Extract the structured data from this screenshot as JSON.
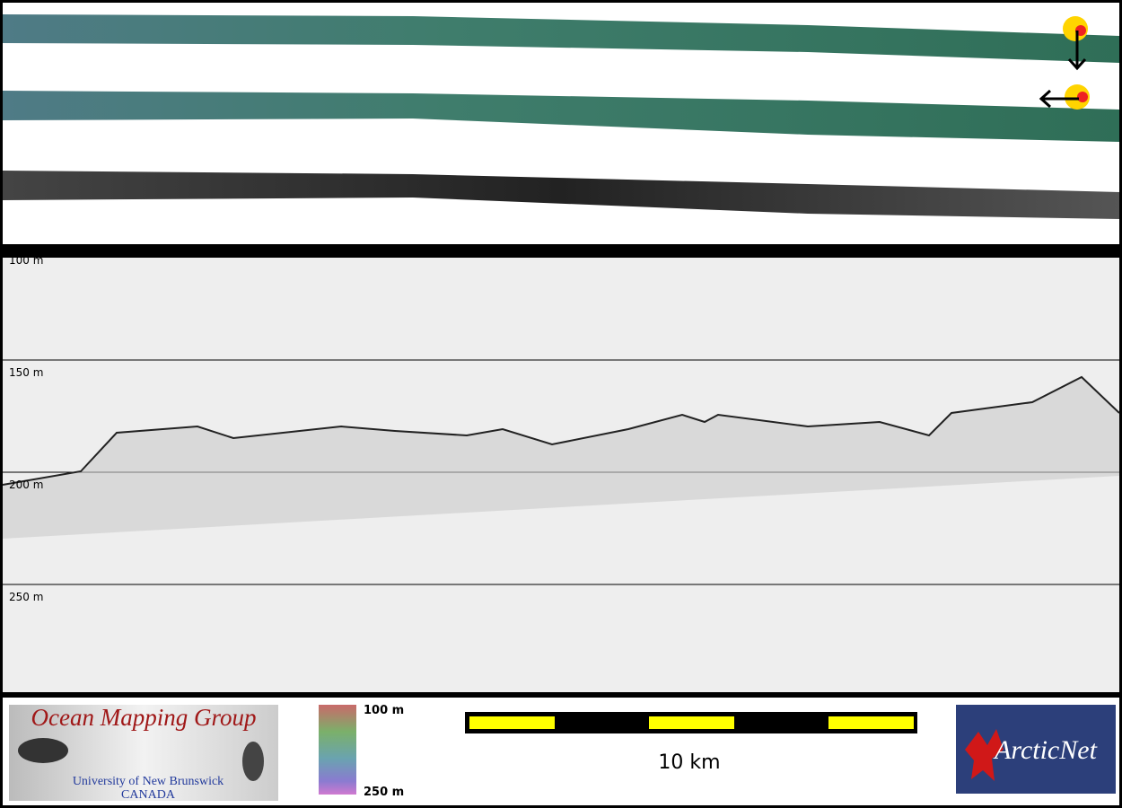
{
  "profile": {
    "depth_labels": [
      "100 m",
      "150 m",
      "200 m",
      "250 m"
    ]
  },
  "footer": {
    "logo": {
      "title": "Ocean Mapping Group",
      "institution": "University of New Brunswick",
      "country": "CANADA"
    },
    "colorbar": {
      "top_label": "100 m",
      "bottom_label": "250 m"
    },
    "scale_bar": {
      "label": "10 km"
    },
    "partner_logo": {
      "text": "ArcticNet"
    }
  }
}
